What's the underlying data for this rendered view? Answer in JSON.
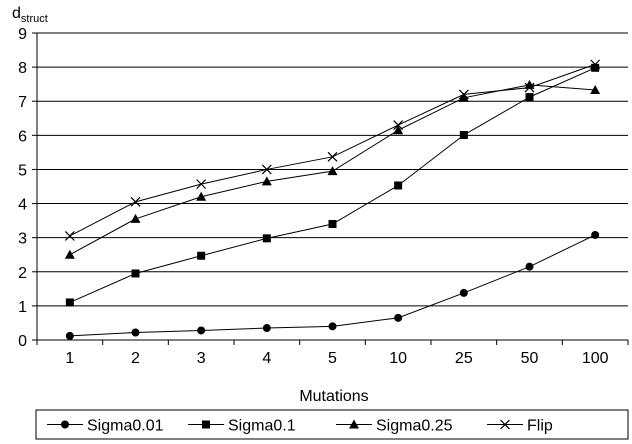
{
  "chart_data": {
    "type": "line",
    "title": "",
    "ylabel_main": "d",
    "ylabel_sub": "struct",
    "xlabel": "Mutations",
    "categories": [
      "1",
      "2",
      "3",
      "4",
      "5",
      "10",
      "25",
      "50",
      "100"
    ],
    "yticks": [
      "0",
      "1",
      "2",
      "3",
      "4",
      "5",
      "6",
      "7",
      "8",
      "9"
    ],
    "ylim": [
      0,
      9
    ],
    "grid": "horizontal",
    "legend": "bottom",
    "series": [
      {
        "name": "Sigma0.01",
        "marker": "circle",
        "values": [
          0.12,
          0.22,
          0.28,
          0.35,
          0.4,
          0.65,
          1.38,
          2.15,
          3.08
        ]
      },
      {
        "name": "Sigma0.1",
        "marker": "square",
        "values": [
          1.1,
          1.95,
          2.47,
          2.98,
          3.4,
          4.53,
          6.01,
          7.12,
          7.98
        ]
      },
      {
        "name": "Sigma0.25",
        "marker": "triangle",
        "values": [
          2.5,
          3.55,
          4.2,
          4.65,
          4.95,
          6.15,
          7.1,
          7.48,
          7.33
        ]
      },
      {
        "name": "Flip",
        "marker": "x",
        "values": [
          3.05,
          4.05,
          4.57,
          5.0,
          5.37,
          6.3,
          7.2,
          7.4,
          8.08
        ]
      }
    ]
  }
}
